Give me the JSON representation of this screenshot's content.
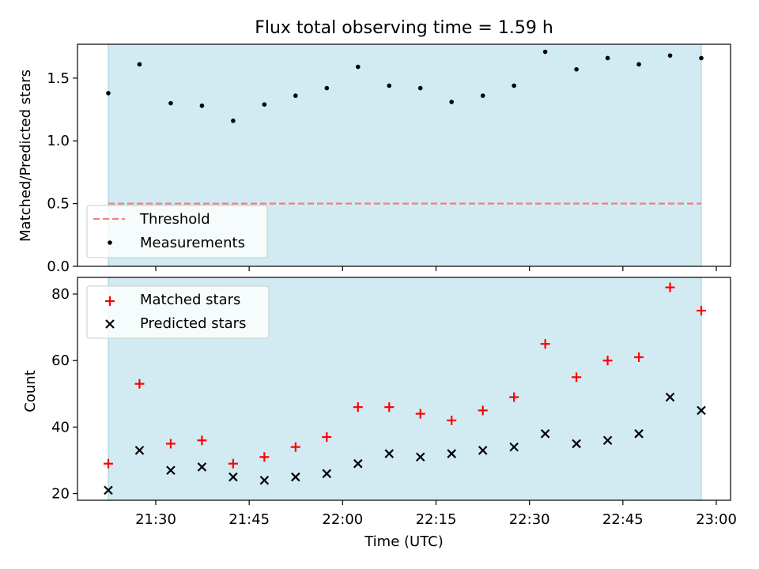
{
  "figure": {
    "title": "Flux total observing time = 1.59 h"
  },
  "chart_data": [
    {
      "type": "scatter",
      "panel": "top",
      "ylabel": "Matched/Predicted stars",
      "xlabel": "",
      "ylim": [
        0,
        1.77
      ],
      "yticks": [
        0.0,
        0.5,
        1.0,
        1.5
      ],
      "ytick_labels": [
        "0.0",
        "0.5",
        "1.0",
        "1.5"
      ],
      "shaded_region_color": "#add8e6",
      "threshold": {
        "name": "Threshold",
        "value": 0.5,
        "style": "dashed",
        "color": "#f08080"
      },
      "series": [
        {
          "name": "Measurements",
          "marker": "dot",
          "color": "#000000",
          "x": [
            "21:25",
            "21:30",
            "21:35",
            "21:40",
            "21:45",
            "21:50",
            "21:55",
            "22:00",
            "22:05",
            "22:10",
            "22:15",
            "22:20",
            "22:25",
            "22:30",
            "22:35",
            "22:40",
            "22:45",
            "22:50",
            "22:55",
            "23:00"
          ],
          "values": [
            1.38,
            1.61,
            1.3,
            1.28,
            1.16,
            1.29,
            1.36,
            1.42,
            1.59,
            1.44,
            1.42,
            1.31,
            1.36,
            1.44,
            1.71,
            1.57,
            1.66,
            1.61,
            1.68,
            1.66
          ]
        }
      ],
      "legend": {
        "placement": "lower-left",
        "entries": [
          "Threshold",
          "Measurements"
        ]
      },
      "grid": false
    },
    {
      "type": "scatter",
      "panel": "bottom",
      "ylabel": "Count",
      "xlabel": "Time (UTC)",
      "xticks": [
        "21:30",
        "21:45",
        "22:00",
        "22:15",
        "22:30",
        "22:45",
        "23:00"
      ],
      "ylim": [
        18,
        85
      ],
      "yticks": [
        20,
        40,
        60,
        80
      ],
      "ytick_labels": [
        "20",
        "40",
        "60",
        "80"
      ],
      "shaded_region_color": "#add8e6",
      "series": [
        {
          "name": "Matched stars",
          "marker": "plus",
          "color": "#ff0000",
          "x": [
            "21:25",
            "21:30",
            "21:35",
            "21:40",
            "21:45",
            "21:50",
            "21:55",
            "22:00",
            "22:05",
            "22:10",
            "22:15",
            "22:20",
            "22:25",
            "22:30",
            "22:35",
            "22:40",
            "22:45",
            "22:50",
            "22:55",
            "23:00"
          ],
          "values": [
            29,
            53,
            35,
            36,
            29,
            31,
            34,
            37,
            46,
            46,
            44,
            42,
            45,
            49,
            65,
            55,
            60,
            61,
            82,
            75
          ]
        },
        {
          "name": "Predicted stars",
          "marker": "x",
          "color": "#000000",
          "x": [
            "21:25",
            "21:30",
            "21:35",
            "21:40",
            "21:45",
            "21:50",
            "21:55",
            "22:00",
            "22:05",
            "22:10",
            "22:15",
            "22:20",
            "22:25",
            "22:30",
            "22:35",
            "22:40",
            "22:45",
            "22:50",
            "22:55",
            "23:00"
          ],
          "values": [
            21,
            33,
            27,
            28,
            25,
            24,
            25,
            26,
            29,
            32,
            31,
            32,
            33,
            34,
            38,
            35,
            36,
            38,
            49,
            45
          ]
        }
      ],
      "legend": {
        "placement": "upper-left",
        "entries": [
          "Matched stars",
          "Predicted stars"
        ]
      },
      "grid": false
    }
  ]
}
